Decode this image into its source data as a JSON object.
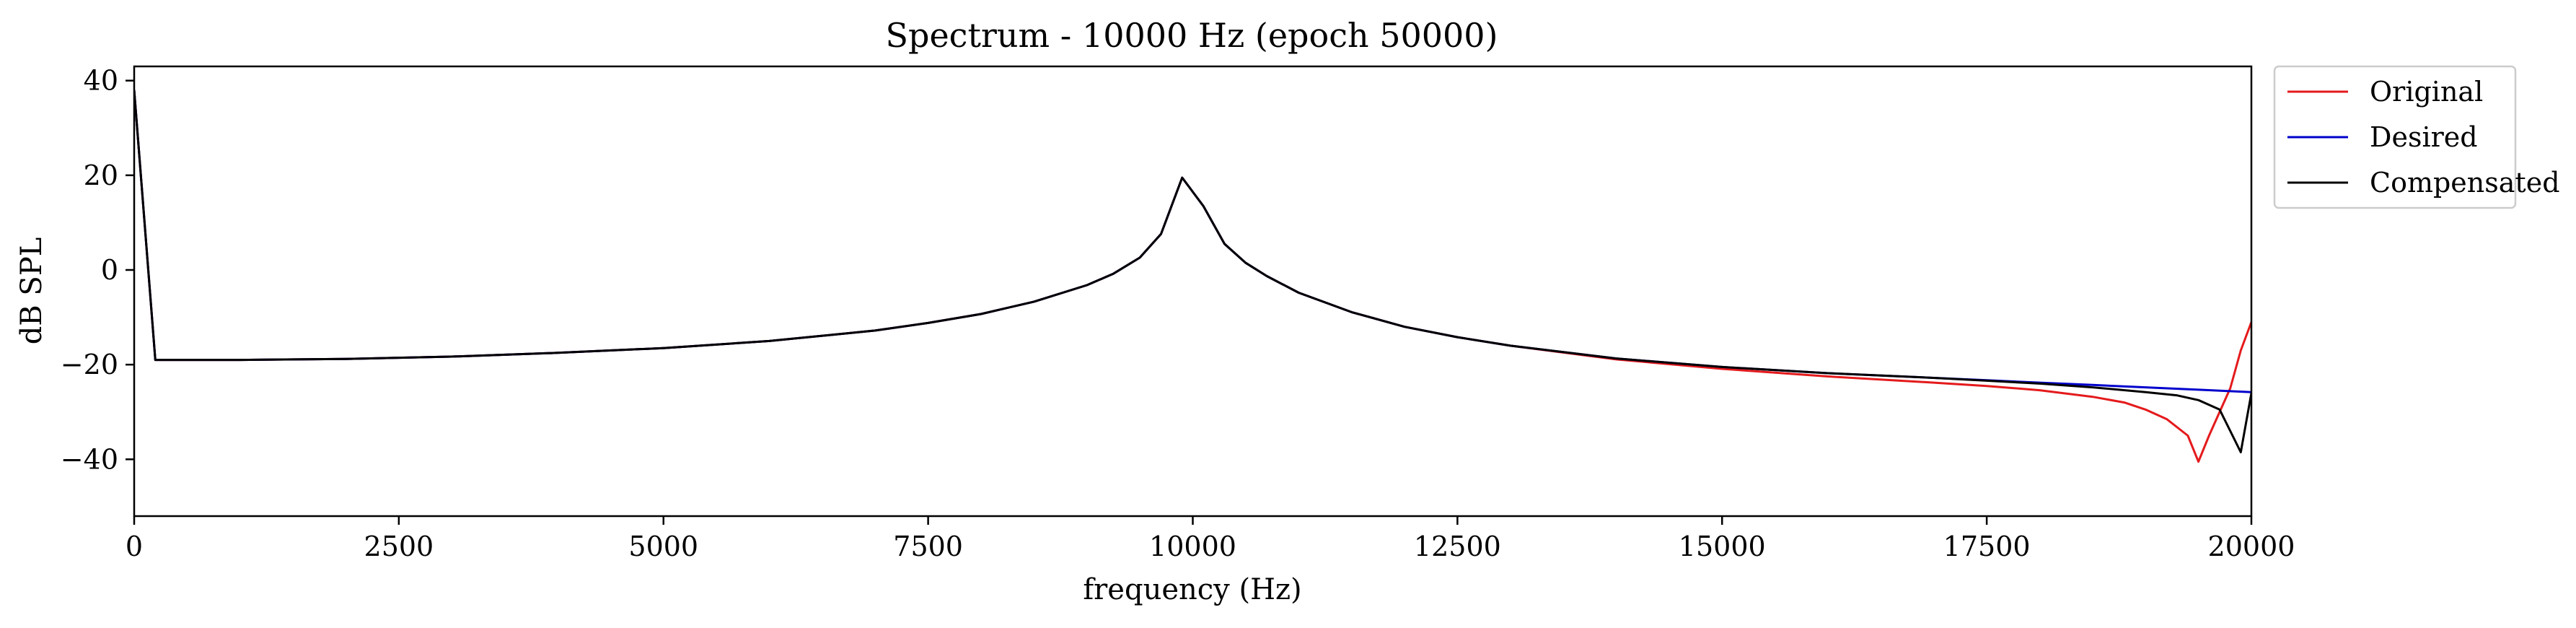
{
  "chart_data": {
    "type": "line",
    "title": "Spectrum - 10000 Hz (epoch 50000)",
    "xlabel": "frequency (Hz)",
    "ylabel": "dB SPL",
    "xlim": [
      0,
      20000
    ],
    "ylim": [
      -52,
      43
    ],
    "xticks": [
      0,
      2500,
      5000,
      7500,
      10000,
      12500,
      15000,
      17500,
      20000
    ],
    "yticks": [
      40,
      20,
      0,
      -20,
      -40
    ],
    "xtick_labels": [
      "0",
      "2500",
      "5000",
      "7500",
      "10000",
      "12500",
      "15000",
      "17500",
      "20000"
    ],
    "ytick_labels": [
      "40",
      "20",
      "0",
      "−20",
      "−40"
    ],
    "grid": false,
    "legend_position": "outside-top-right",
    "series": [
      {
        "name": "Original",
        "color": "#e41a1c",
        "x": [
          0,
          200,
          1000,
          2000,
          3000,
          4000,
          5000,
          6000,
          7000,
          7500,
          8000,
          8500,
          9000,
          9250,
          9500,
          9700,
          9900,
          10100,
          10300,
          10500,
          10700,
          11000,
          11500,
          12000,
          12500,
          13000,
          14000,
          15000,
          16000,
          17000,
          17500,
          18000,
          18500,
          18800,
          19000,
          19200,
          19400,
          19500,
          19600,
          19800,
          19900,
          20000
        ],
        "y": [
          38,
          -19,
          -19,
          -18.8,
          -18.3,
          -17.5,
          -16.5,
          -15,
          -12.8,
          -11.2,
          -9.3,
          -6.7,
          -3.2,
          -0.8,
          2.6,
          7.6,
          19.5,
          13.5,
          5.5,
          1.5,
          -1.3,
          -4.8,
          -8.9,
          -12,
          -14.2,
          -16,
          -18.9,
          -20.9,
          -22.5,
          -23.8,
          -24.5,
          -25.4,
          -26.8,
          -28,
          -29.5,
          -31.5,
          -35,
          -40.5,
          -35,
          -25,
          -17,
          -11
        ]
      },
      {
        "name": "Desired",
        "color": "#0000cc",
        "x": [
          0,
          200,
          1000,
          2000,
          3000,
          4000,
          5000,
          6000,
          7000,
          7500,
          8000,
          8500,
          9000,
          9250,
          9500,
          9700,
          9900,
          10100,
          10300,
          10500,
          10700,
          11000,
          11500,
          12000,
          12500,
          13000,
          14000,
          15000,
          16000,
          17000,
          17500,
          18000,
          18500,
          19000,
          19500,
          20000
        ],
        "y": [
          38,
          -19,
          -19,
          -18.8,
          -18.3,
          -17.5,
          -16.5,
          -15,
          -12.8,
          -11.2,
          -9.3,
          -6.7,
          -3.2,
          -0.8,
          2.6,
          7.6,
          19.5,
          13.5,
          5.5,
          1.5,
          -1.3,
          -4.8,
          -8.9,
          -12,
          -14.2,
          -16,
          -18.7,
          -20.5,
          -21.8,
          -22.8,
          -23.3,
          -23.8,
          -24.3,
          -24.8,
          -25.3,
          -25.8
        ]
      },
      {
        "name": "Compensated",
        "color": "#000000",
        "x": [
          0,
          200,
          1000,
          2000,
          3000,
          4000,
          5000,
          6000,
          7000,
          7500,
          8000,
          8500,
          9000,
          9250,
          9500,
          9700,
          9900,
          10100,
          10300,
          10500,
          10700,
          11000,
          11500,
          12000,
          12500,
          13000,
          14000,
          15000,
          16000,
          17000,
          17500,
          18000,
          18500,
          19000,
          19300,
          19500,
          19700,
          19800,
          19900,
          20000
        ],
        "y": [
          38,
          -19,
          -19,
          -18.8,
          -18.3,
          -17.5,
          -16.5,
          -15,
          -12.8,
          -11.2,
          -9.3,
          -6.7,
          -3.2,
          -0.8,
          2.6,
          7.6,
          19.5,
          13.5,
          5.5,
          1.5,
          -1.3,
          -4.8,
          -8.9,
          -12,
          -14.2,
          -16,
          -18.7,
          -20.5,
          -21.8,
          -22.8,
          -23.4,
          -24,
          -24.8,
          -25.8,
          -26.5,
          -27.5,
          -29.5,
          -34,
          -38.5,
          -26
        ]
      }
    ]
  }
}
